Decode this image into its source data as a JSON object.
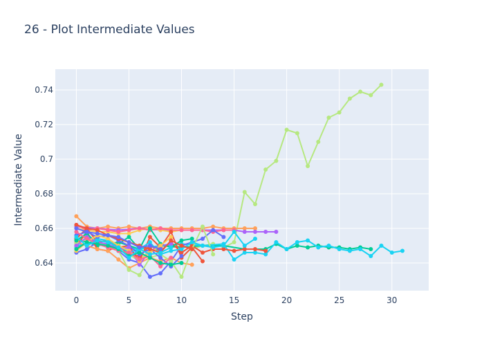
{
  "chart_data": {
    "type": "line",
    "title": "26 - Plot Intermediate Values",
    "xlabel": "Step",
    "ylabel": "Intermediate Value",
    "xlim": [
      -2,
      33.5
    ],
    "ylim": [
      0.624,
      0.752
    ],
    "x_ticks": [
      0,
      5,
      10,
      15,
      20,
      25,
      30
    ],
    "x_tick_labels": [
      "0",
      "5",
      "10",
      "15",
      "20",
      "25",
      "30"
    ],
    "y_ticks": [
      0.64,
      0.66,
      0.68,
      0.7,
      0.72,
      0.74
    ],
    "y_tick_labels": [
      "0.64",
      "0.66",
      "0.68",
      "0.7",
      "0.72",
      "0.74"
    ],
    "grid": true,
    "legend": "none",
    "background": "#e5ecf6",
    "series": [
      {
        "color": "#b6e880",
        "x": [
          0,
          1,
          2,
          3,
          4,
          5,
          6,
          7,
          8,
          9,
          10,
          11,
          12,
          13,
          14,
          15,
          16,
          17,
          18,
          19,
          20,
          21,
          22,
          23,
          24,
          25,
          26,
          27,
          28,
          29
        ],
        "y": [
          0.652,
          0.656,
          0.651,
          0.65,
          0.648,
          0.645,
          0.641,
          0.648,
          0.646,
          0.649,
          0.65,
          0.648,
          0.65,
          0.651,
          0.649,
          0.652,
          0.681,
          0.674,
          0.694,
          0.699,
          0.717,
          0.715,
          0.696,
          0.71,
          0.724,
          0.727,
          0.735,
          0.739,
          0.737,
          0.743
        ]
      },
      {
        "color": "#00cc96",
        "x": [
          0,
          2,
          4,
          6,
          8,
          10,
          12,
          14,
          16,
          18,
          19,
          20,
          21,
          22,
          23,
          24,
          25,
          26,
          27,
          28
        ],
        "y": [
          0.654,
          0.65,
          0.652,
          0.648,
          0.65,
          0.649,
          0.65,
          0.65,
          0.648,
          0.648,
          0.651,
          0.648,
          0.65,
          0.649,
          0.65,
          0.649,
          0.649,
          0.648,
          0.649,
          0.648
        ]
      },
      {
        "color": "#19d3f3",
        "x": [
          0,
          2,
          4,
          6,
          8,
          10,
          12,
          14,
          15,
          16,
          17,
          18,
          19,
          20,
          21,
          22,
          23,
          24,
          25,
          26,
          27,
          28,
          29,
          30,
          31
        ],
        "y": [
          0.65,
          0.652,
          0.649,
          0.648,
          0.65,
          0.651,
          0.65,
          0.651,
          0.642,
          0.646,
          0.646,
          0.645,
          0.652,
          0.648,
          0.652,
          0.653,
          0.649,
          0.65,
          0.648,
          0.647,
          0.648,
          0.644,
          0.65,
          0.646,
          0.647
        ]
      },
      {
        "color": "#ffa15a",
        "x": [
          0,
          1,
          2,
          3,
          4,
          5,
          6,
          7,
          8,
          9,
          10,
          11,
          12,
          13,
          14,
          15,
          16,
          17
        ],
        "y": [
          0.667,
          0.661,
          0.66,
          0.661,
          0.66,
          0.661,
          0.66,
          0.661,
          0.66,
          0.66,
          0.66,
          0.66,
          0.66,
          0.661,
          0.66,
          0.66,
          0.66,
          0.66
        ]
      },
      {
        "color": "#ab63fa",
        "x": [
          0,
          2,
          4,
          6,
          8,
          10,
          12,
          14,
          15,
          16,
          17,
          18,
          19
        ],
        "y": [
          0.661,
          0.66,
          0.659,
          0.66,
          0.659,
          0.659,
          0.659,
          0.659,
          0.659,
          0.658,
          0.658,
          0.658,
          0.658
        ]
      },
      {
        "color": "#fecb52",
        "x": [
          0,
          1,
          2,
          3,
          4,
          5,
          6,
          7,
          8,
          9,
          10
        ],
        "y": [
          0.66,
          0.659,
          0.658,
          0.658,
          0.657,
          0.657,
          0.659,
          0.66,
          0.659,
          0.658,
          0.659
        ]
      },
      {
        "color": "#ff6692",
        "x": [
          0,
          1,
          2,
          3,
          4,
          5,
          6,
          7,
          8,
          9,
          10,
          11,
          12,
          13,
          14,
          15
        ],
        "y": [
          0.662,
          0.659,
          0.66,
          0.659,
          0.658,
          0.659,
          0.66,
          0.659,
          0.66,
          0.659,
          0.659,
          0.659,
          0.659,
          0.658,
          0.659,
          0.659
        ]
      },
      {
        "color": "#636efa",
        "x": [
          0,
          1,
          2,
          3,
          4,
          5,
          6,
          7,
          8,
          9,
          10,
          11,
          12,
          13,
          14
        ],
        "y": [
          0.646,
          0.648,
          0.652,
          0.65,
          0.647,
          0.642,
          0.64,
          0.632,
          0.634,
          0.641,
          0.65,
          0.652,
          0.654,
          0.659,
          0.655
        ]
      },
      {
        "color": "#ef553b",
        "x": [
          0,
          1,
          2,
          3,
          4,
          5,
          6,
          7,
          8,
          9,
          10,
          11,
          12,
          13,
          14,
          15,
          16,
          17,
          18
        ],
        "y": [
          0.65,
          0.658,
          0.648,
          0.647,
          0.65,
          0.645,
          0.644,
          0.65,
          0.647,
          0.652,
          0.646,
          0.65,
          0.646,
          0.648,
          0.648,
          0.647,
          0.648,
          0.648,
          0.647
        ]
      },
      {
        "color": "#ef553b",
        "x": [
          0,
          1,
          2,
          3,
          4,
          5,
          6,
          7,
          8,
          9,
          10,
          11,
          12
        ],
        "y": [
          0.654,
          0.66,
          0.652,
          0.653,
          0.649,
          0.65,
          0.641,
          0.655,
          0.649,
          0.658,
          0.643,
          0.649,
          0.641
        ]
      },
      {
        "color": "#ffa15a",
        "x": [
          0,
          1,
          2,
          3,
          4,
          5,
          6,
          7,
          8,
          9,
          10,
          11
        ],
        "y": [
          0.652,
          0.65,
          0.648,
          0.647,
          0.642,
          0.637,
          0.64,
          0.643,
          0.641,
          0.643,
          0.64,
          0.639
        ]
      },
      {
        "color": "#b6e880",
        "x": [
          0,
          1,
          2,
          3,
          4,
          5,
          6,
          7,
          8,
          9,
          10,
          11,
          12,
          13
        ],
        "y": [
          0.651,
          0.654,
          0.652,
          0.65,
          0.647,
          0.636,
          0.633,
          0.643,
          0.645,
          0.641,
          0.632,
          0.648,
          0.661,
          0.645
        ]
      },
      {
        "color": "#00cc96",
        "x": [
          0,
          1,
          2,
          3,
          4,
          5,
          6,
          7,
          8,
          9,
          10,
          11
        ],
        "y": [
          0.653,
          0.657,
          0.651,
          0.649,
          0.651,
          0.655,
          0.648,
          0.66,
          0.651,
          0.649,
          0.653,
          0.654
        ]
      },
      {
        "color": "#19d3f3",
        "x": [
          0,
          1,
          2,
          3,
          4,
          5,
          6,
          7,
          8,
          9,
          10,
          11,
          12,
          13,
          14,
          15,
          16,
          17
        ],
        "y": [
          0.649,
          0.651,
          0.654,
          0.653,
          0.65,
          0.646,
          0.648,
          0.652,
          0.645,
          0.647,
          0.648,
          0.652,
          0.65,
          0.649,
          0.65,
          0.658,
          0.65,
          0.654
        ]
      },
      {
        "color": "#636efa",
        "x": [
          0,
          1,
          2,
          3,
          4,
          5,
          6,
          7,
          8,
          9,
          10
        ],
        "y": [
          0.656,
          0.658,
          0.655,
          0.656,
          0.653,
          0.65,
          0.645,
          0.648,
          0.643,
          0.638,
          0.644
        ]
      },
      {
        "color": "#ab63fa",
        "x": [
          0,
          1,
          2,
          3,
          4,
          5,
          6,
          7,
          8,
          9
        ],
        "y": [
          0.65,
          0.655,
          0.652,
          0.651,
          0.648,
          0.649,
          0.639,
          0.647,
          0.65,
          0.651
        ]
      },
      {
        "color": "#fecb52",
        "x": [
          0,
          1,
          2,
          3,
          4,
          5,
          6,
          7,
          8,
          9
        ],
        "y": [
          0.647,
          0.652,
          0.656,
          0.654,
          0.65,
          0.647,
          0.641,
          0.646,
          0.65,
          0.655
        ]
      },
      {
        "color": "#ff6692",
        "x": [
          0,
          1,
          2,
          3,
          4,
          5,
          6,
          7,
          8,
          9
        ],
        "y": [
          0.658,
          0.654,
          0.651,
          0.649,
          0.647,
          0.646,
          0.642,
          0.644,
          0.638,
          0.643
        ]
      },
      {
        "color": "#00cc96",
        "x": [
          0,
          1,
          2,
          3,
          4,
          5,
          6,
          7,
          8,
          9,
          10
        ],
        "y": [
          0.648,
          0.652,
          0.651,
          0.65,
          0.648,
          0.644,
          0.646,
          0.643,
          0.64,
          0.639,
          0.64
        ]
      },
      {
        "color": "#ef553b",
        "x": [
          0,
          1,
          2,
          3,
          4,
          5,
          6,
          7,
          8,
          9,
          10,
          11
        ],
        "y": [
          0.662,
          0.66,
          0.659,
          0.656,
          0.654,
          0.652,
          0.65,
          0.648,
          0.646,
          0.653,
          0.65,
          0.648
        ]
      },
      {
        "color": "#19d3f3",
        "x": [
          0,
          1,
          2,
          3,
          4,
          5,
          6,
          7,
          8,
          9
        ],
        "y": [
          0.655,
          0.65,
          0.653,
          0.652,
          0.649,
          0.643,
          0.648,
          0.645,
          0.646,
          0.649
        ]
      },
      {
        "color": "#636efa",
        "x": [
          0,
          1,
          2,
          3,
          4,
          5,
          6,
          7,
          8
        ],
        "y": [
          0.66,
          0.658,
          0.657,
          0.656,
          0.655,
          0.652,
          0.649,
          0.65,
          0.648
        ]
      }
    ]
  }
}
